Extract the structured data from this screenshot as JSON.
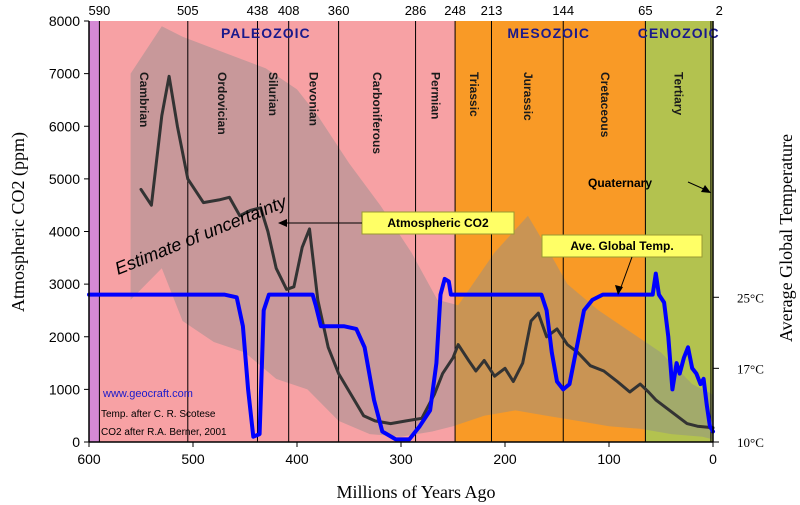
{
  "chart_data": {
    "type": "line",
    "xlabel": "Millions of Years Ago",
    "ylabel": "Atmospheric CO2 (ppm)",
    "y2label": "Average Global Temperature",
    "xlim": [
      600,
      0
    ],
    "ylim": [
      0,
      8000
    ],
    "x_ticks": [
      "600",
      "500",
      "400",
      "300",
      "200",
      "100",
      "0"
    ],
    "y_ticks": [
      "0",
      "1000",
      "2000",
      "3000",
      "4000",
      "5000",
      "6000",
      "7000",
      "8000"
    ],
    "y2_ticks": [
      {
        "label": "25°C",
        "co2_equiv": 2750
      },
      {
        "label": "17°C",
        "co2_equiv": 1400
      },
      {
        "label": "10°C",
        "co2_equiv": 0
      }
    ],
    "top_boundaries": [
      {
        "label": "590",
        "ma": 590
      },
      {
        "label": "505",
        "ma": 505
      },
      {
        "label": "438",
        "ma": 438
      },
      {
        "label": "408",
        "ma": 408
      },
      {
        "label": "360",
        "ma": 360
      },
      {
        "label": "286",
        "ma": 286
      },
      {
        "label": "248",
        "ma": 248
      },
      {
        "label": "213",
        "ma": 213
      },
      {
        "label": "144",
        "ma": 144
      },
      {
        "label": "65",
        "ma": 65
      },
      {
        "label": "2",
        "ma": 2
      }
    ],
    "eras": [
      {
        "label": "PALEOZOIC",
        "from": 590,
        "to": 248,
        "color": "#f7a1a4",
        "label_ma": 430
      },
      {
        "label": "MESOZOIC",
        "from": 248,
        "to": 65,
        "color": "#f99a26",
        "label_ma": 158
      },
      {
        "label": "CENOZOIC",
        "from": 65,
        "to": 0,
        "color": "#b3c24f",
        "label_ma": 33
      }
    ],
    "precambrian": {
      "from": 600,
      "to": 590,
      "color": "#d489d4"
    },
    "periods": [
      {
        "label": "Cambrian",
        "ma": 547
      },
      {
        "label": "Ordovician",
        "ma": 472
      },
      {
        "label": "Silurian",
        "ma": 423
      },
      {
        "label": "Devonian",
        "ma": 384
      },
      {
        "label": "Carboniferous",
        "ma": 323
      },
      {
        "label": "Permian",
        "ma": 267
      },
      {
        "label": "Triassic",
        "ma": 230
      },
      {
        "label": "Jurassic",
        "ma": 178
      },
      {
        "label": "Cretaceous",
        "ma": 104
      },
      {
        "label": "Tertiary",
        "ma": 33
      }
    ],
    "quaternary_label": "Quaternary",
    "series": [
      {
        "name": "Atmospheric CO2",
        "color": "#333333",
        "points": [
          [
            550,
            4800
          ],
          [
            540,
            4500
          ],
          [
            530,
            6200
          ],
          [
            523,
            6950
          ],
          [
            515,
            6000
          ],
          [
            505,
            5000
          ],
          [
            490,
            4550
          ],
          [
            475,
            4600
          ],
          [
            465,
            4650
          ],
          [
            455,
            4300
          ],
          [
            445,
            4400
          ],
          [
            435,
            4450
          ],
          [
            428,
            4000
          ],
          [
            420,
            3300
          ],
          [
            410,
            2900
          ],
          [
            403,
            2950
          ],
          [
            395,
            3700
          ],
          [
            388,
            4050
          ],
          [
            380,
            2700
          ],
          [
            370,
            1800
          ],
          [
            360,
            1300
          ],
          [
            348,
            900
          ],
          [
            336,
            500
          ],
          [
            325,
            400
          ],
          [
            310,
            350
          ],
          [
            295,
            400
          ],
          [
            280,
            450
          ],
          [
            268,
            900
          ],
          [
            260,
            1300
          ],
          [
            250,
            1600
          ],
          [
            245,
            1850
          ],
          [
            235,
            1550
          ],
          [
            228,
            1350
          ],
          [
            220,
            1550
          ],
          [
            210,
            1250
          ],
          [
            200,
            1400
          ],
          [
            192,
            1150
          ],
          [
            183,
            1500
          ],
          [
            175,
            2300
          ],
          [
            168,
            2450
          ],
          [
            160,
            2000
          ],
          [
            150,
            2150
          ],
          [
            140,
            1850
          ],
          [
            130,
            1700
          ],
          [
            118,
            1450
          ],
          [
            105,
            1350
          ],
          [
            92,
            1150
          ],
          [
            80,
            950
          ],
          [
            70,
            1100
          ],
          [
            62,
            950
          ],
          [
            55,
            800
          ],
          [
            45,
            650
          ],
          [
            35,
            500
          ],
          [
            25,
            350
          ],
          [
            15,
            300
          ],
          [
            5,
            280
          ],
          [
            0,
            270
          ]
        ]
      },
      {
        "name": "Ave. Global Temp.",
        "color": "#0000ff",
        "points": [
          [
            600,
            2800
          ],
          [
            470,
            2800
          ],
          [
            458,
            2750
          ],
          [
            452,
            2200
          ],
          [
            447,
            1000
          ],
          [
            442,
            100
          ],
          [
            436,
            150
          ],
          [
            432,
            2500
          ],
          [
            427,
            2800
          ],
          [
            385,
            2800
          ],
          [
            382,
            2600
          ],
          [
            377,
            2200
          ],
          [
            355,
            2200
          ],
          [
            343,
            2150
          ],
          [
            335,
            1800
          ],
          [
            326,
            800
          ],
          [
            318,
            200
          ],
          [
            305,
            50
          ],
          [
            292,
            50
          ],
          [
            282,
            300
          ],
          [
            272,
            600
          ],
          [
            266,
            1500
          ],
          [
            262,
            2800
          ],
          [
            258,
            3100
          ],
          [
            254,
            3050
          ],
          [
            252,
            2800
          ],
          [
            165,
            2800
          ],
          [
            160,
            2500
          ],
          [
            155,
            1700
          ],
          [
            150,
            1150
          ],
          [
            144,
            1000
          ],
          [
            138,
            1100
          ],
          [
            130,
            1900
          ],
          [
            124,
            2500
          ],
          [
            116,
            2700
          ],
          [
            106,
            2800
          ],
          [
            65,
            2800
          ],
          [
            58,
            2800
          ],
          [
            55,
            3200
          ],
          [
            52,
            2800
          ],
          [
            47,
            2650
          ],
          [
            43,
            2000
          ],
          [
            39,
            1000
          ],
          [
            35,
            1500
          ],
          [
            32,
            1300
          ],
          [
            28,
            1600
          ],
          [
            24,
            1800
          ],
          [
            20,
            1400
          ],
          [
            16,
            1300
          ],
          [
            12,
            1100
          ],
          [
            9,
            1200
          ],
          [
            6,
            700
          ],
          [
            3,
            300
          ],
          [
            0,
            200
          ]
        ]
      }
    ],
    "uncertainty_band": {
      "upper": [
        [
          560,
          7000
        ],
        [
          530,
          7900
        ],
        [
          510,
          7700
        ],
        [
          470,
          7400
        ],
        [
          430,
          7100
        ],
        [
          400,
          6700
        ],
        [
          380,
          6200
        ],
        [
          350,
          5300
        ],
        [
          320,
          4500
        ],
        [
          290,
          3600
        ],
        [
          265,
          2700
        ],
        [
          245,
          2600
        ],
        [
          210,
          3600
        ],
        [
          178,
          4300
        ],
        [
          160,
          3700
        ],
        [
          140,
          3000
        ],
        [
          110,
          2500
        ],
        [
          80,
          2100
        ],
        [
          50,
          1700
        ],
        [
          20,
          1100
        ],
        [
          0,
          900
        ]
      ],
      "lower": [
        [
          560,
          2700
        ],
        [
          530,
          3300
        ],
        [
          510,
          2300
        ],
        [
          480,
          1900
        ],
        [
          450,
          1700
        ],
        [
          420,
          1200
        ],
        [
          390,
          1000
        ],
        [
          360,
          400
        ],
        [
          330,
          150
        ],
        [
          300,
          100
        ],
        [
          270,
          200
        ],
        [
          250,
          300
        ],
        [
          220,
          500
        ],
        [
          190,
          600
        ],
        [
          160,
          500
        ],
        [
          130,
          400
        ],
        [
          100,
          300
        ],
        [
          70,
          250
        ],
        [
          40,
          150
        ],
        [
          10,
          100
        ],
        [
          0,
          50
        ]
      ],
      "color": "#8f8f8f",
      "opacity": 0.45
    },
    "annotations": [
      {
        "text": "Estimate of uncertainty"
      },
      {
        "text": "Atmospheric CO2"
      },
      {
        "text": "Ave. Global Temp."
      }
    ],
    "credits": [
      "www.geocraft.com",
      "Temp. after C. R. Scotese",
      "CO2 after R.A. Berner, 2001"
    ]
  }
}
